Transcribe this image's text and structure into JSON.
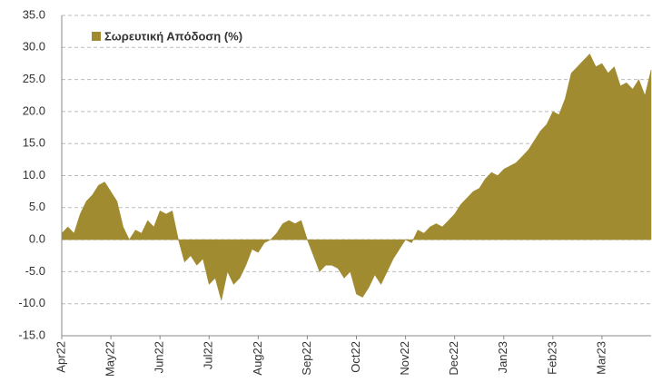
{
  "chart_data": {
    "type": "area",
    "series": [
      {
        "name": "Σωρευτική Απόδοση (%)",
        "color": "#a18b31",
        "values": [
          1,
          2,
          1,
          4,
          6,
          7,
          8.5,
          9,
          7.5,
          6,
          2,
          0,
          1.5,
          1,
          3,
          2,
          4.5,
          4,
          4.5,
          0,
          -3.5,
          -2.5,
          -4,
          -3,
          -7,
          -6,
          -9.5,
          -5,
          -7,
          -6,
          -4,
          -1.5,
          -2,
          -0.5,
          0,
          1,
          2.5,
          3,
          2.5,
          3,
          0,
          -2.5,
          -5,
          -4,
          -4,
          -4.5,
          -6,
          -5,
          -8.5,
          -9,
          -7.5,
          -5.5,
          -7,
          -5,
          -3,
          -1.5,
          0,
          -0.5,
          1.5,
          1,
          2,
          2.5,
          2,
          3,
          4,
          5.5,
          6.5,
          7.5,
          8,
          9.5,
          10.5,
          10,
          11,
          11.5,
          12,
          13,
          14,
          15.5,
          17,
          18,
          20,
          19.5,
          22,
          26,
          27,
          28,
          29,
          27,
          27.5,
          26,
          27,
          24,
          24.5,
          23.5,
          25,
          22.5,
          26.5
        ]
      }
    ],
    "xlim": [
      0,
      96
    ],
    "xticks": [
      {
        "value": 0,
        "label": "Apr22"
      },
      {
        "value": 8,
        "label": "May22"
      },
      {
        "value": 16,
        "label": "Jun22"
      },
      {
        "value": 24,
        "label": "Jul22"
      },
      {
        "value": 32,
        "label": "Aug22"
      },
      {
        "value": 40,
        "label": "Sep22"
      },
      {
        "value": 48,
        "label": "Oct22"
      },
      {
        "value": 56,
        "label": "Nov22"
      },
      {
        "value": 64,
        "label": "Dec22"
      },
      {
        "value": 72,
        "label": "Jan23"
      },
      {
        "value": 80,
        "label": "Feb23"
      },
      {
        "value": 88,
        "label": "Mar23"
      }
    ],
    "ylim": [
      -15,
      35
    ],
    "yticks": [
      {
        "value": -15,
        "label": "-15.0"
      },
      {
        "value": -10,
        "label": "-10.0"
      },
      {
        "value": -5,
        "label": "-5.0"
      },
      {
        "value": 0,
        "label": "0.0"
      },
      {
        "value": 5,
        "label": "5.0"
      },
      {
        "value": 10,
        "label": "10.0"
      },
      {
        "value": 15,
        "label": "15.0"
      },
      {
        "value": 20,
        "label": "20.0"
      },
      {
        "value": 25,
        "label": "25.0"
      },
      {
        "value": 30,
        "label": "30.0"
      },
      {
        "value": 35,
        "label": "35.0"
      }
    ],
    "grid": true,
    "legend": "upper left"
  }
}
